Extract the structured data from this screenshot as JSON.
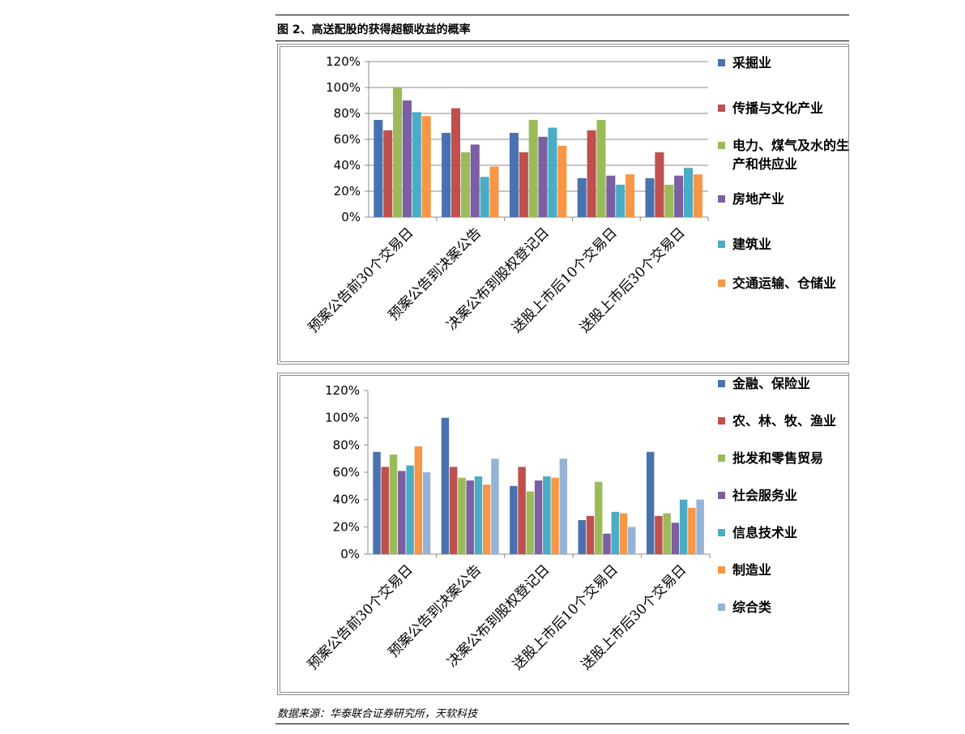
{
  "figure_title": "图 2、高送配股的获得超额收益的概率",
  "source": "数据来源：华泰联合证券研究所，天软科技",
  "chart_data": [
    {
      "type": "bar",
      "categories": [
        "预案公告前30个交易日",
        "预案公告到决案公告",
        "决案公布到股权登记日",
        "送股上市后10个交易日",
        "送股上市后30个交易日"
      ],
      "yticks": [
        "0%",
        "20%",
        "40%",
        "60%",
        "80%",
        "100%",
        "120%"
      ],
      "ylim": [
        0,
        1.2
      ],
      "legend_position": "right",
      "grid": true,
      "series": [
        {
          "name": "采掘业",
          "color": "#4a72b0",
          "values": [
            0.75,
            0.65,
            0.65,
            0.3,
            0.3
          ]
        },
        {
          "name": "传播与文化产业",
          "color": "#c0504d",
          "values": [
            0.67,
            0.84,
            0.5,
            0.67,
            0.5
          ]
        },
        {
          "name": "电力、煤气及水的生产和供应业",
          "color": "#9bbb59",
          "values": [
            1.0,
            0.5,
            0.75,
            0.75,
            0.25
          ]
        },
        {
          "name": "房地产业",
          "color": "#7b5fa0",
          "values": [
            0.9,
            0.56,
            0.62,
            0.32,
            0.32
          ]
        },
        {
          "name": "建筑业",
          "color": "#4bacc6",
          "values": [
            0.81,
            0.31,
            0.69,
            0.25,
            0.38
          ]
        },
        {
          "name": "交通运输、仓储业",
          "color": "#f79646",
          "values": [
            0.78,
            0.39,
            0.55,
            0.33,
            0.33
          ]
        }
      ]
    },
    {
      "type": "bar",
      "categories": [
        "预案公告前30个交易日",
        "预案公告到决案公告",
        "决案公布到股权登记日",
        "送股上市后10个交易日",
        "送股上市后30个交易日"
      ],
      "yticks": [
        "0%",
        "20%",
        "40%",
        "60%",
        "80%",
        "100%",
        "120%"
      ],
      "ylim": [
        0,
        1.2
      ],
      "legend_position": "right",
      "grid": false,
      "series": [
        {
          "name": "金融、保险业",
          "color": "#4a72b0",
          "values": [
            0.75,
            1.0,
            0.5,
            0.25,
            0.75
          ]
        },
        {
          "name": "农、林、牧、渔业",
          "color": "#c0504d",
          "values": [
            0.64,
            0.64,
            0.64,
            0.28,
            0.28
          ]
        },
        {
          "name": "批发和零售贸易",
          "color": "#9bbb59",
          "values": [
            0.73,
            0.56,
            0.46,
            0.53,
            0.3
          ]
        },
        {
          "name": "社会服务业",
          "color": "#7b5fa0",
          "values": [
            0.61,
            0.54,
            0.54,
            0.15,
            0.23
          ]
        },
        {
          "name": "信息技术业",
          "color": "#4bacc6",
          "values": [
            0.65,
            0.57,
            0.57,
            0.31,
            0.4
          ]
        },
        {
          "name": "制造业",
          "color": "#f79646",
          "values": [
            0.79,
            0.51,
            0.56,
            0.3,
            0.34
          ]
        },
        {
          "name": "综合类",
          "color": "#95b3d7",
          "values": [
            0.6,
            0.7,
            0.7,
            0.2,
            0.4
          ]
        }
      ]
    }
  ]
}
